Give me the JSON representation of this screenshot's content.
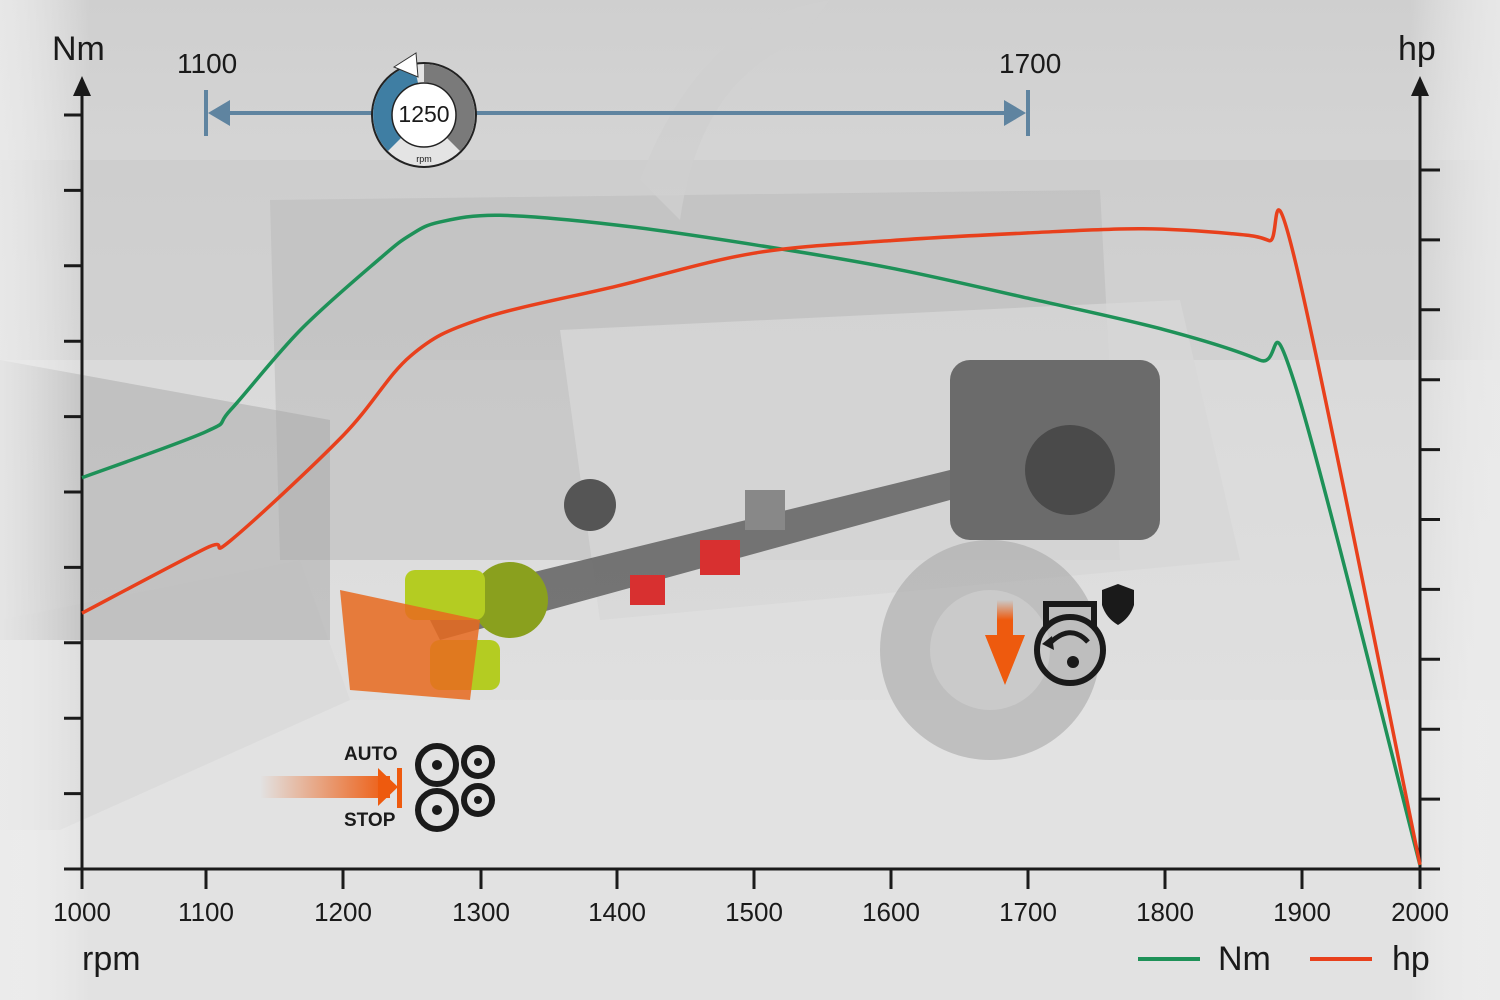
{
  "chart_data": {
    "type": "line",
    "title": "",
    "xlabel": "rpm",
    "ylabel_left": "Nm",
    "ylabel_right": "hp",
    "x_ticks": [
      1000,
      1100,
      1200,
      1300,
      1400,
      1500,
      1600,
      1700,
      1800,
      1900,
      2000
    ],
    "xlim": [
      1000,
      2000
    ],
    "ylim_left": [
      0,
      10
    ],
    "ylim_right": [
      0,
      10
    ],
    "y_tick_labels": "none",
    "grid": false,
    "legend_position": "bottom-right",
    "series": [
      {
        "name": "Nm",
        "axis": "left",
        "color": "#1e9158",
        "points": [
          [
            1000,
            5.19
          ],
          [
            1100,
            5.8
          ],
          [
            1118,
            6.09
          ],
          [
            1169,
            7.15
          ],
          [
            1227,
            8.1
          ],
          [
            1249,
            8.41
          ],
          [
            1270,
            8.58
          ],
          [
            1314,
            8.67
          ],
          [
            1400,
            8.54
          ],
          [
            1500,
            8.28
          ],
          [
            1600,
            7.97
          ],
          [
            1700,
            7.57
          ],
          [
            1800,
            7.15
          ],
          [
            1869,
            6.75
          ],
          [
            1895,
            6.42
          ],
          [
            2000,
            0.05
          ]
        ]
      },
      {
        "name": "hp",
        "axis": "right",
        "color": "#e8401c",
        "points": [
          [
            1000,
            3.66
          ],
          [
            1100,
            4.59
          ],
          [
            1118,
            4.7
          ],
          [
            1200,
            6.2
          ],
          [
            1249,
            7.34
          ],
          [
            1300,
            7.87
          ],
          [
            1400,
            8.34
          ],
          [
            1500,
            8.81
          ],
          [
            1600,
            8.99
          ],
          [
            1700,
            9.1
          ],
          [
            1782,
            9.16
          ],
          [
            1848,
            9.09
          ],
          [
            1876,
            8.99
          ],
          [
            1895,
            8.7
          ],
          [
            2000,
            0.06
          ]
        ]
      }
    ],
    "annotations": {
      "range_start": "1100",
      "range_end": "1700",
      "range_values": [
        1100,
        1700
      ],
      "gauge_value": "1250",
      "gauge_unit": "rpm",
      "auto_label": "AUTO",
      "stop_label": "STOP"
    },
    "colors": {
      "range_arrow": "#5f84a0",
      "gauge_fill": "#3f7ea3",
      "gauge_rest": "#7a7a7a",
      "accent_orange": "#ee5a0e"
    }
  }
}
